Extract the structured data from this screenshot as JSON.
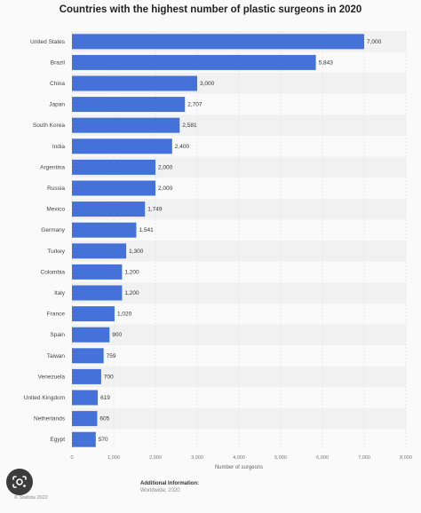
{
  "chart_data": {
    "type": "bar",
    "orientation": "horizontal",
    "title": "Countries with the highest number of plastic surgeons in 2020",
    "categories": [
      "United States",
      "Brazil",
      "China",
      "Japan",
      "South Korea",
      "India",
      "Argentina",
      "Russia",
      "Mexico",
      "Germany",
      "Turkey",
      "Colombia",
      "Italy",
      "France",
      "Spain",
      "Taiwan",
      "Venezuela",
      "United Kingdom",
      "Netherlands",
      "Egypt"
    ],
    "values": [
      7000,
      5843,
      3000,
      2707,
      2581,
      2400,
      2000,
      2000,
      1749,
      1541,
      1300,
      1200,
      1200,
      1020,
      900,
      759,
      700,
      619,
      605,
      570
    ],
    "value_labels": [
      "7,000",
      "5,843",
      "3,000",
      "2,707",
      "2,581",
      "2,400",
      "2,000",
      "2,000",
      "1,749",
      "1,541",
      "1,300",
      "1,200",
      "1,200",
      "1,020",
      "900",
      "759",
      "700",
      "619",
      "605",
      "570"
    ],
    "xlabel": "Number of surgeons",
    "ylabel": "",
    "xlim": [
      0,
      8000
    ],
    "x_ticks": [
      0,
      1000,
      2000,
      3000,
      4000,
      5000,
      6000,
      7000,
      8000
    ],
    "x_tick_labels": [
      "0",
      "1,000",
      "2,000",
      "3,000",
      "4,000",
      "5,000",
      "6,000",
      "7,000",
      "8,000"
    ],
    "grid": true,
    "bar_color": "#4472d8"
  },
  "footer": {
    "heading": "Additional Information:",
    "sub": "Worldwide; 2020",
    "copyright": "© Statista 2022"
  },
  "icons": {
    "lens": "google-lens-icon"
  }
}
